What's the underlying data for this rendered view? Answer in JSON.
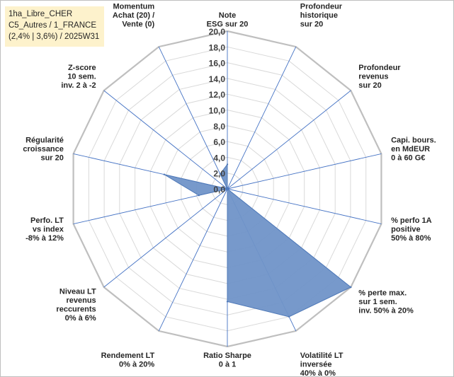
{
  "info": {
    "line1": "1ha_Libre_CHER",
    "line2": "C5_Autres / 1_FRANCE",
    "line3": "(2,4% | 3,6%) / 2025W31"
  },
  "chart_data": {
    "type": "radar",
    "title": "",
    "rmin": 0,
    "rmax": 20,
    "tick_step": 2,
    "tick_labels": [
      "0,0",
      "2,0",
      "4,0",
      "6,0",
      "8,0",
      "10,0",
      "12,0",
      "14,0",
      "16,0",
      "18,0",
      "20,0"
    ],
    "grid": true,
    "axes": [
      [
        "Note",
        "ESG sur 20"
      ],
      [
        "Profondeur",
        "historique",
        "sur 20"
      ],
      [
        "Profondeur",
        "revenus",
        "sur 20"
      ],
      [
        "Capi. bours.",
        "en MdEUR",
        "0 à 60 G€"
      ],
      [
        "% perfo 1A",
        "positive",
        "50% à 80%"
      ],
      [
        "% perte max.",
        "sur 1 sem.",
        "inv. 50% à 20%"
      ],
      [
        "Volatilité LT",
        "inversée",
        "40% à 0%"
      ],
      [
        "Ratio Sharpe",
        "0 à 1"
      ],
      [
        "Rendement LT",
        "0% à 20%"
      ],
      [
        "Niveau LT",
        "revenus",
        "reccurents",
        "0% à 6%"
      ],
      [
        "Perfo. LT",
        "vs index",
        "-8% à 12%"
      ],
      [
        "Régularité",
        "croissance",
        "sur 20"
      ],
      [
        "Z-score",
        "10 sem.",
        "inv. 2 à -2"
      ],
      [
        "Momentum",
        "Achat (20) /",
        "Vente (0)"
      ]
    ],
    "series": [
      {
        "values": [
          3.1,
          0,
          0,
          0,
          0,
          20,
          18,
          14.3,
          0,
          0,
          3.7,
          8.2,
          0,
          2.1
        ]
      }
    ],
    "colors": {
      "fill": "#7094c8",
      "stroke": "#4f79b8",
      "grid_ring": "#d9d9d9",
      "grid_outer": "#bfbfbf",
      "spoke": "#4472c4"
    }
  }
}
